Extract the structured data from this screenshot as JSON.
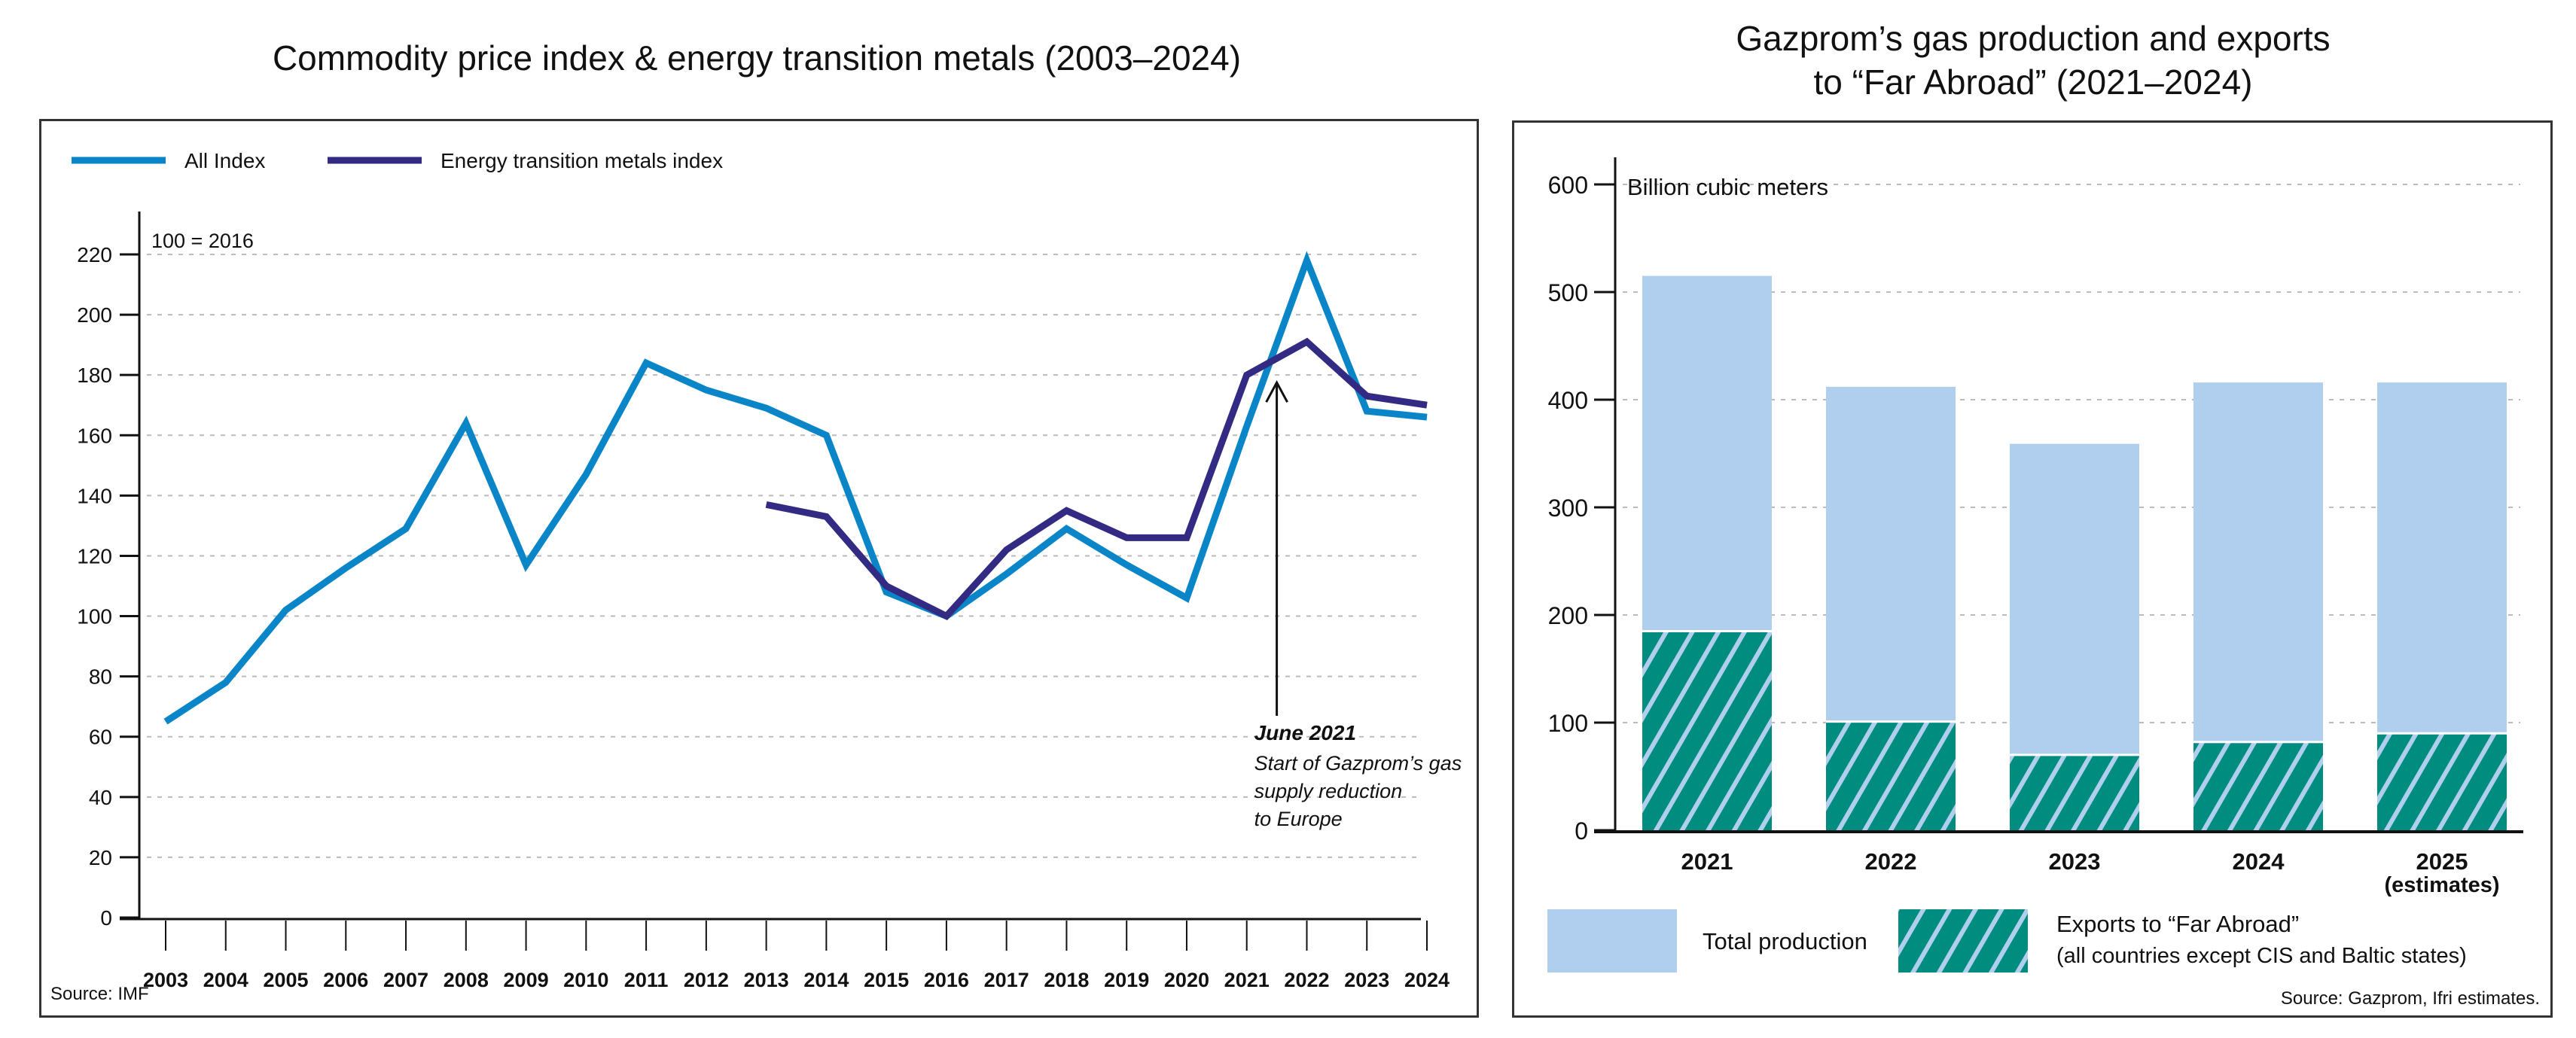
{
  "chart_data": [
    {
      "type": "line",
      "title": "Commodity price index & energy transition metals (2003–2024)",
      "ylabel": "100 = 2016",
      "xlabel": "",
      "ylim": [
        0,
        220
      ],
      "yticks": [
        0,
        20,
        40,
        60,
        80,
        100,
        120,
        140,
        160,
        180,
        200,
        220
      ],
      "grid": true,
      "legend_position": "top-left",
      "x": [
        "2003",
        "2004",
        "2005",
        "2006",
        "2007",
        "2008",
        "2009",
        "2010",
        "2011",
        "2012",
        "2013",
        "2014",
        "2015",
        "2016",
        "2017",
        "2018",
        "2019",
        "2020",
        "2021",
        "2022",
        "2023",
        "2024"
      ],
      "series": [
        {
          "name": "All Index",
          "color": "#0a86c8",
          "values": [
            65,
            78,
            102,
            116,
            129,
            164,
            117,
            147,
            184,
            175,
            169,
            160,
            108,
            100,
            114,
            129,
            117,
            106,
            163,
            218,
            168,
            166
          ]
        },
        {
          "name": "Energy transition metals index",
          "color": "#322a83",
          "values": [
            null,
            null,
            null,
            null,
            null,
            null,
            null,
            null,
            null,
            null,
            137,
            133,
            110,
            100,
            122,
            135,
            126,
            126,
            180,
            191,
            173,
            170
          ]
        }
      ],
      "annotation": {
        "title": "June 2021",
        "lines": [
          "Start of Gazprom’s gas",
          "supply reduction",
          "to Europe"
        ],
        "x": 2021.5,
        "arrow_to": 178
      },
      "source": "Source: IMF"
    },
    {
      "type": "bar",
      "title_lines": [
        "Gazprom’s gas production and exports",
        "to “Far Abroad” (2021–2024)"
      ],
      "ylabel": "Billion cubic meters",
      "ylim": [
        0,
        600
      ],
      "yticks": [
        0,
        100,
        200,
        300,
        400,
        500,
        600
      ],
      "grid": true,
      "legend_position": "bottom",
      "categories": [
        "2021",
        "2022",
        "2023",
        "2024",
        "2025"
      ],
      "category_sublabels": [
        "",
        "",
        "",
        "",
        "(estimates)"
      ],
      "series": [
        {
          "name": "Total production",
          "color": "#b0cfee",
          "values": [
            515,
            412,
            359,
            416,
            416
          ]
        },
        {
          "name": "Exports to “Far Abroad”",
          "name_line2": "(all countries except CIS and Baltic states)",
          "color": "#008c7f",
          "hatch_color": "#b0cfee",
          "values": [
            185,
            101,
            70,
            82,
            90
          ]
        }
      ],
      "source": "Source: Gazprom, Ifri estimates."
    }
  ]
}
